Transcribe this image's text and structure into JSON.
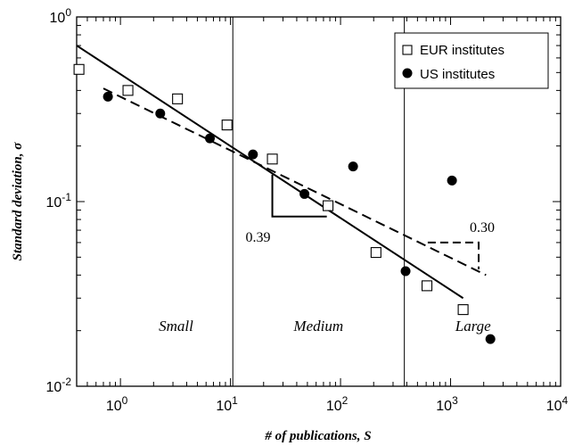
{
  "chart_data": {
    "type": "scatter",
    "xscale": "log",
    "yscale": "log",
    "xlim": [
      0.4,
      10000
    ],
    "ylim": [
      0.01,
      1
    ],
    "xlabel": "# of publications, S",
    "ylabel": "Standard deviation, σ",
    "x_ticks": [
      {
        "value": 1,
        "base": "10",
        "exp": "0"
      },
      {
        "value": 10,
        "base": "10",
        "exp": "1"
      },
      {
        "value": 100,
        "base": "10",
        "exp": "2"
      },
      {
        "value": 1000,
        "base": "10",
        "exp": "3"
      },
      {
        "value": 10000,
        "base": "10",
        "exp": "4"
      }
    ],
    "y_ticks": [
      {
        "value": 0.01,
        "base": "10",
        "exp": "-2"
      },
      {
        "value": 0.1,
        "base": "10",
        "exp": "-1"
      },
      {
        "value": 1,
        "base": "10",
        "exp": "0"
      }
    ],
    "legend_position": "top-right",
    "series": [
      {
        "name": "EUR institutes",
        "marker": "open-square",
        "points": [
          {
            "x": 0.42,
            "y": 0.52
          },
          {
            "x": 1.17,
            "y": 0.4
          },
          {
            "x": 3.3,
            "y": 0.36
          },
          {
            "x": 9.3,
            "y": 0.26
          },
          {
            "x": 24,
            "y": 0.17
          },
          {
            "x": 77,
            "y": 0.095
          },
          {
            "x": 210,
            "y": 0.053
          },
          {
            "x": 610,
            "y": 0.035
          },
          {
            "x": 1300,
            "y": 0.026
          }
        ]
      },
      {
        "name": "US institutes",
        "marker": "filled-circle",
        "points": [
          {
            "x": 0.77,
            "y": 0.37
          },
          {
            "x": 2.3,
            "y": 0.3
          },
          {
            "x": 6.5,
            "y": 0.22
          },
          {
            "x": 16,
            "y": 0.18
          },
          {
            "x": 47,
            "y": 0.11
          },
          {
            "x": 130,
            "y": 0.155
          },
          {
            "x": 390,
            "y": 0.042
          },
          {
            "x": 1030,
            "y": 0.13
          },
          {
            "x": 2300,
            "y": 0.018
          }
        ]
      }
    ],
    "fit_lines": [
      {
        "style": "solid",
        "from": [
          0.4,
          0.7
        ],
        "to": [
          1300,
          0.03
        ]
      },
      {
        "style": "dashed",
        "from": [
          0.7,
          0.41
        ],
        "to": [
          2100,
          0.04
        ]
      }
    ],
    "dividers": [
      10.5,
      380
    ],
    "regions": [
      {
        "label": "Small",
        "x": 3.2
      },
      {
        "label": "Medium",
        "x": 63
      },
      {
        "label": "Large",
        "x": 1600
      }
    ],
    "slope_annotations": [
      {
        "label": "0.39",
        "style": "solid",
        "x1": 24,
        "x2": 75,
        "y_top": 0.14,
        "y_bottom": 0.083
      },
      {
        "label": "0.30",
        "style": "dashed",
        "x1": 620,
        "x2": 1800,
        "y_top": 0.06,
        "y_bottom": 0.043
      }
    ]
  }
}
